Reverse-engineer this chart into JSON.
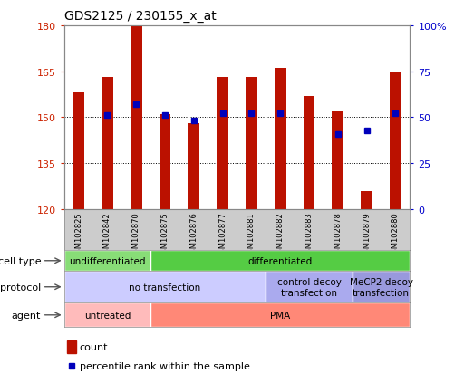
{
  "title": "GDS2125 / 230155_x_at",
  "samples": [
    "GSM102825",
    "GSM102842",
    "GSM102870",
    "GSM102875",
    "GSM102876",
    "GSM102877",
    "GSM102881",
    "GSM102882",
    "GSM102883",
    "GSM102878",
    "GSM102879",
    "GSM102880"
  ],
  "counts": [
    158,
    163,
    180,
    151,
    148,
    163,
    163,
    166,
    157,
    152,
    126,
    165
  ],
  "percentiles": [
    null,
    51,
    57,
    51,
    48,
    52,
    52,
    52,
    null,
    41,
    43,
    52
  ],
  "y_min": 120,
  "y_max": 180,
  "y_ticks": [
    120,
    135,
    150,
    165,
    180
  ],
  "y_tick_labels": [
    "120",
    "135",
    "150",
    "165",
    "180"
  ],
  "y2_ticks": [
    0,
    25,
    50,
    75,
    100
  ],
  "y2_tick_labels": [
    "0",
    "25",
    "50",
    "75",
    "100%"
  ],
  "bar_color": "#bb1100",
  "dot_color": "#0000bb",
  "grid_color": "#aaaaaa",
  "bg_plot": "#ffffff",
  "bg_xlabels": "#cccccc",
  "cell_types": [
    {
      "label": "undifferentiated",
      "start": 0,
      "end": 3,
      "color": "#88dd77"
    },
    {
      "label": "differentiated",
      "start": 3,
      "end": 12,
      "color": "#55cc44"
    }
  ],
  "protocols": [
    {
      "label": "no transfection",
      "start": 0,
      "end": 7,
      "color": "#ccccff"
    },
    {
      "label": "control decoy\ntransfection",
      "start": 7,
      "end": 10,
      "color": "#aaaaee"
    },
    {
      "label": "MeCP2 decoy\ntransfection",
      "start": 10,
      "end": 12,
      "color": "#9999dd"
    }
  ],
  "agents": [
    {
      "label": "untreated",
      "start": 0,
      "end": 3,
      "color": "#ffbbbb"
    },
    {
      "label": "PMA",
      "start": 3,
      "end": 12,
      "color": "#ff8877"
    }
  ],
  "row_labels": [
    "cell type",
    "protocol",
    "agent"
  ],
  "legend_items": [
    {
      "color": "#bb1100",
      "label": "count"
    },
    {
      "color": "#0000bb",
      "label": "percentile rank within the sample"
    }
  ]
}
